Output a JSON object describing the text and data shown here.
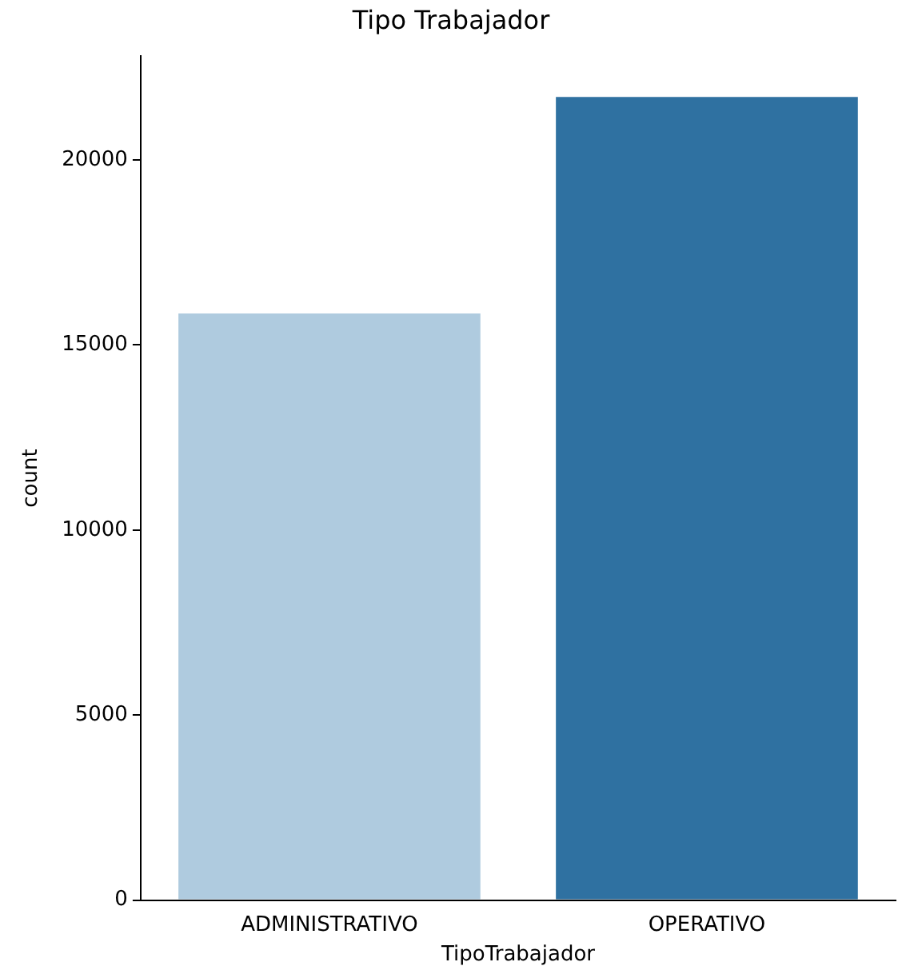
{
  "chart_data": {
    "type": "bar",
    "title": "Tipo Trabajador",
    "xlabel": "TipoTrabajador",
    "ylabel": "count",
    "categories": [
      "ADMINISTRATIVO",
      "OPERATIVO"
    ],
    "values": [
      15850,
      21700
    ],
    "colors": [
      "#afcbdf",
      "#2f71a1"
    ],
    "ylim": [
      0,
      22800
    ],
    "yticks": [
      0,
      5000,
      10000,
      15000,
      20000
    ],
    "grid": false,
    "legend": false
  }
}
